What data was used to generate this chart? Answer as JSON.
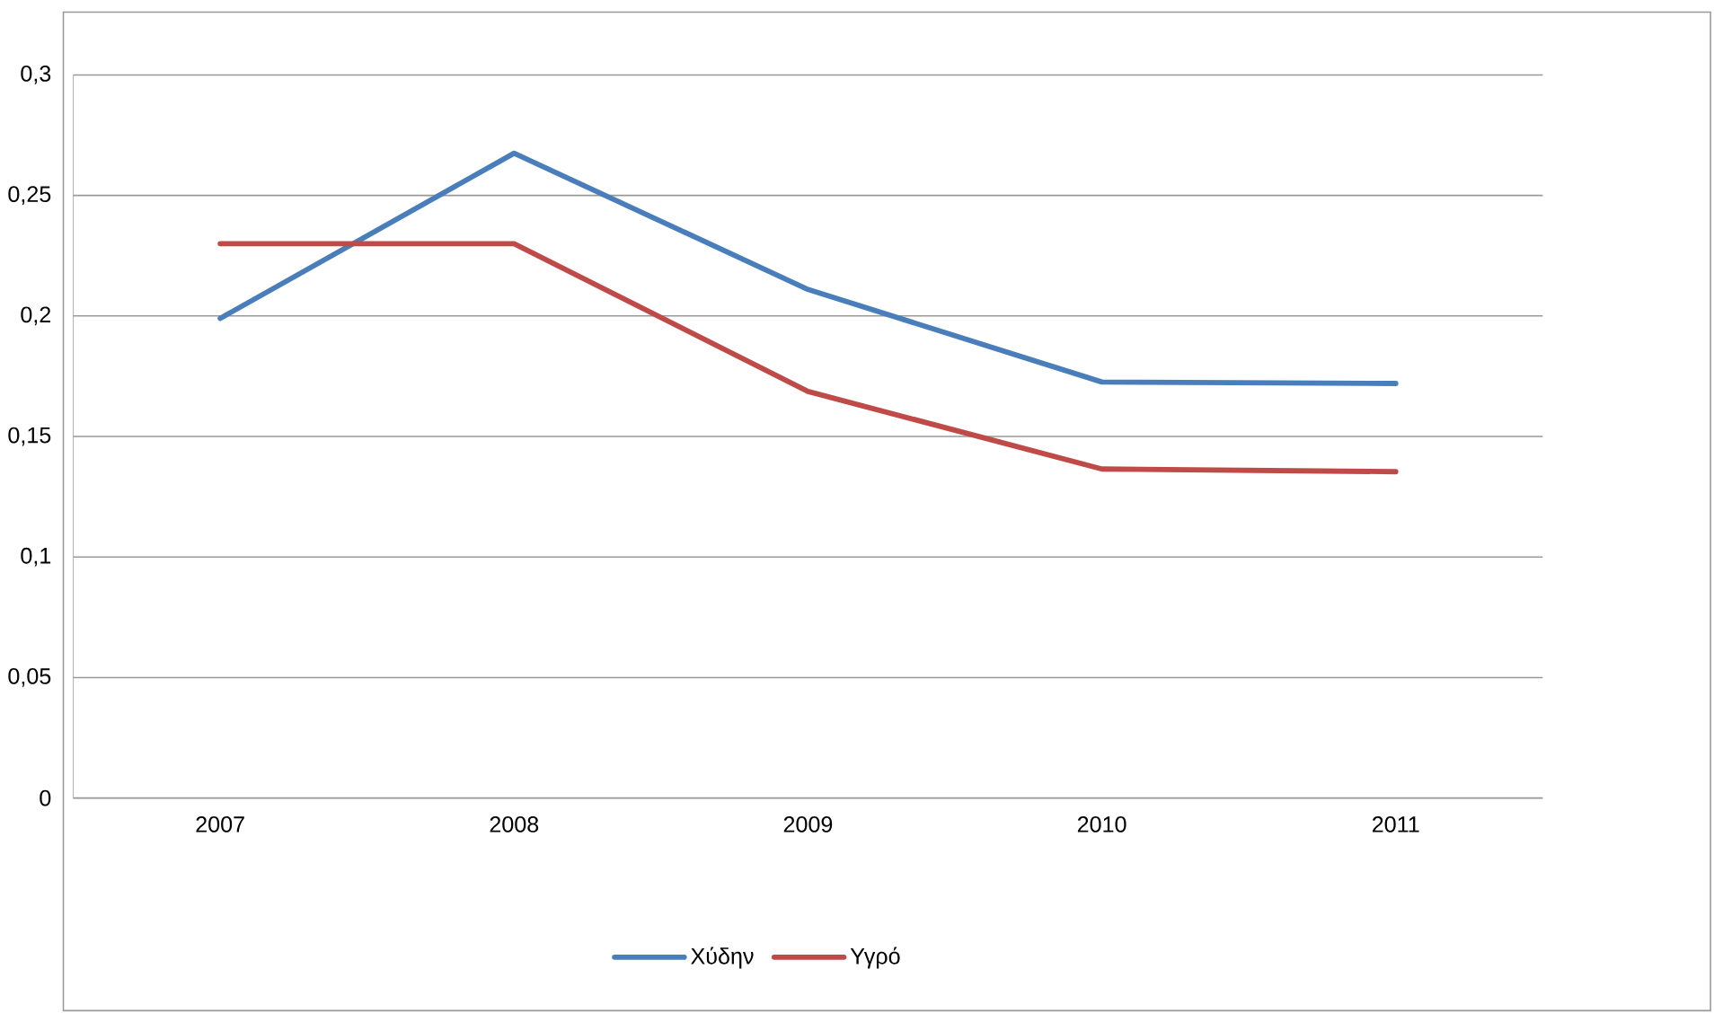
{
  "chart_data": {
    "type": "line",
    "categories": [
      "2007",
      "2008",
      "2009",
      "2010",
      "2011"
    ],
    "series": [
      {
        "name": "Χύδην",
        "color": "#4a7ebb",
        "values": [
          0.199,
          0.2675,
          0.211,
          0.1726,
          0.172
        ]
      },
      {
        "name": "Υγρό",
        "color": "#be4b48",
        "values": [
          0.23,
          0.23,
          0.1687,
          0.1365,
          0.1354
        ]
      }
    ],
    "ylim": [
      0,
      0.3
    ],
    "yticks": [
      0,
      {
        "value": 0.05,
        "label": "0,05"
      },
      {
        "value": 0.1,
        "label": "0,1"
      },
      {
        "value": 0.15,
        "label": "0,15"
      },
      {
        "value": 0.2,
        "label": "0,2"
      },
      {
        "value": 0.25,
        "label": "0,25"
      },
      {
        "value": 0.3,
        "label": "0,3"
      }
    ],
    "grid": "y",
    "legend": "bottom"
  }
}
